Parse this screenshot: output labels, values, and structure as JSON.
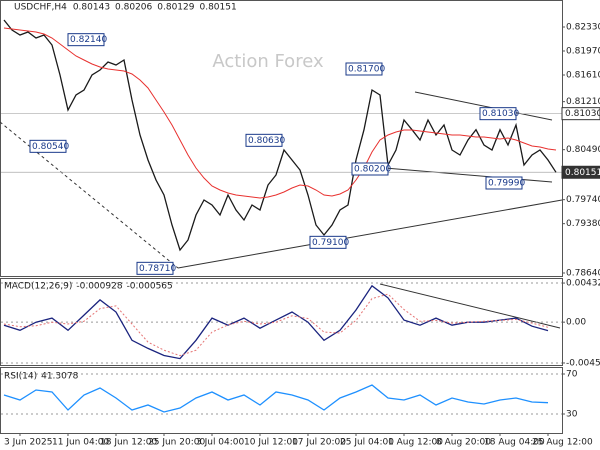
{
  "chart_data": [
    {
      "type": "line",
      "title": "USDCHF,H4",
      "ohlc": [
        0.80143,
        0.80206,
        0.80129,
        0.80151
      ],
      "watermark": "Action Forex",
      "categories": [
        null,
        null,
        "3 Jun 2025",
        null,
        null,
        null,
        null,
        null,
        "11 Jun 04:00",
        null,
        null,
        null,
        null,
        null,
        "18 Jun 12:00",
        null,
        null,
        null,
        null,
        null,
        "25 Jun 20:00",
        null,
        null,
        null,
        null,
        null,
        "3 Jul 04:00",
        null,
        null,
        null,
        null,
        null,
        "10 Jul 12:00",
        null,
        null,
        null,
        null,
        null,
        "17 Jul 20:00",
        null,
        null,
        null,
        null,
        null,
        "25 Jul 04:00",
        null,
        null,
        null,
        null,
        null,
        "1 Aug 12:00",
        null,
        null,
        null,
        null,
        null,
        "8 Aug 20:00",
        null,
        null,
        null,
        null,
        null,
        "18 Aug 04:00",
        null,
        null,
        null,
        null,
        null,
        "25 Aug 12:00",
        null
      ],
      "series": [
        {
          "color": "#1a1a1a",
          "values": [
            0.82435,
            0.82285,
            0.8221,
            0.82255,
            0.82165,
            0.8221,
            0.8206,
            0.8161,
            0.81085,
            0.8131,
            0.81385,
            0.8161,
            0.81685,
            0.81805,
            0.8176,
            0.81835,
            0.81235,
            0.8071,
            0.80335,
            0.80035,
            0.7981,
            0.7936,
            0.78985,
            0.79135,
            0.7951,
            0.79735,
            0.7966,
            0.7951,
            0.7981,
            0.79585,
            0.79435,
            0.7966,
            0.79585,
            0.7996,
            0.8011,
            0.80485,
            0.80335,
            0.80185,
            0.7981,
            0.7936,
            0.7921,
            0.7936,
            0.79585,
            0.7966,
            0.80335,
            0.8079,
            0.81385,
            0.8131,
            0.8026,
            0.80485,
            0.80935,
            0.8079,
            0.80635,
            0.80935,
            0.8071,
            0.8086,
            0.80485,
            0.8041,
            0.80635,
            0.8079,
            0.8056,
            0.80485,
            0.8079,
            0.8056,
            0.8086,
            0.8026,
            0.8041,
            0.80485,
            0.80335,
            0.80151
          ]
        },
        {
          "color": "#e8312f",
          "values": [
            0.82315,
            0.823,
            0.82285,
            0.8227,
            0.82255,
            0.82225,
            0.82165,
            0.82075,
            0.81985,
            0.81895,
            0.81835,
            0.81775,
            0.8173,
            0.817,
            0.81685,
            0.8167,
            0.81625,
            0.81535,
            0.81415,
            0.81235,
            0.81055,
            0.8086,
            0.80635,
            0.8041,
            0.80215,
            0.80065,
            0.79945,
            0.79885,
            0.7984,
            0.7981,
            0.79795,
            0.7978,
            0.79765,
            0.7978,
            0.7981,
            0.79855,
            0.79915,
            0.7996,
            0.79945,
            0.79885,
            0.7981,
            0.79795,
            0.79825,
            0.79885,
            0.80035,
            0.80215,
            0.80455,
            0.80635,
            0.8071,
            0.80755,
            0.80785,
            0.80785,
            0.8077,
            0.80755,
            0.8074,
            0.80725,
            0.8071,
            0.8071,
            0.80695,
            0.8068,
            0.8068,
            0.80665,
            0.8065,
            0.80665,
            0.80635,
            0.8059,
            0.80545,
            0.8053,
            0.805,
            0.80485
          ]
        }
      ],
      "ylim": [
        0.7861,
        0.82735
      ],
      "yticks": [
        {
          "value": 0.8233,
          "label": "0.82330"
        },
        {
          "value": 0.8197,
          "label": "0.81970"
        },
        {
          "value": 0.8161,
          "label": "0.81610"
        },
        {
          "value": 0.8121,
          "label": "0.81210"
        },
        {
          "value": 0.8049,
          "label": "0.80490"
        },
        {
          "value": 0.7974,
          "label": "0.79740"
        },
        {
          "value": 0.7938,
          "label": "0.79380"
        },
        {
          "value": 0.7864,
          "label": "0.78640"
        }
      ],
      "price_labels": [
        {
          "value": 0.8103,
          "label": "0.81030"
        },
        {
          "value": 0.80151,
          "label": "0.80151"
        }
      ],
      "annotations": [
        {
          "value": 0.8214,
          "label": "0.82140"
        },
        {
          "value": 0.8054,
          "label": "0.80540"
        },
        {
          "value": 0.7871,
          "label": "0.78710"
        },
        {
          "value": 0.8063,
          "label": "0.80630"
        },
        {
          "value": 0.791,
          "label": "0.79100"
        },
        {
          "value": 0.817,
          "label": "0.81700"
        },
        {
          "value": 0.802,
          "label": "0.80200"
        },
        {
          "value": 0.8103,
          "label": "0.81030"
        },
        {
          "value": 0.7999,
          "label": "0.79990"
        }
      ]
    },
    {
      "type": "line",
      "title": "MACD(12,26,9)",
      "readout": [
        -0.000928,
        -0.000565
      ],
      "series": [
        {
          "color": "#1a237e",
          "values": [
            -0.000335,
            -0.000894,
            0,
            0.000447,
            -0.000894,
            0.000783,
            0.00246,
            0.00112,
            -0.00201,
            -0.0029,
            -0.00369,
            -0.00403,
            -0.00201,
            0.000447,
            -0.000335,
            0.000447,
            -0.000671,
            0.000224,
            0.00112,
            0,
            -0.00201,
            -0.000894,
            0.00134,
            0.00402,
            0.00268,
            0.000224,
            -0.000335,
            0.000447,
            -0.000335,
            0,
            0,
            0.000224,
            0.000447,
            -0.000447,
            -0.000928
          ]
        },
        {
          "color": "#e57373",
          "values": [
            -0.0002,
            -0.0005,
            -0.0004,
            0,
            -0.0002,
            0.0001,
            0.0015,
            0.0018,
            -0.0002,
            -0.0022,
            -0.0031,
            -0.0037,
            -0.0031,
            -0.0011,
            -0.0003,
            0.0001,
            -0.0002,
            0,
            0.0007,
            0.0004,
            -0.0011,
            -0.0012,
            0.0002,
            0.0026,
            0.0031,
            0.0014,
            0.0001,
            0.0002,
            -0.0001,
            0,
            0.0001,
            0.0002,
            0.0003,
            -0.0001,
            -0.000565
          ]
        }
      ],
      "ylim": [
        -0.004735,
        0.004882
      ],
      "yticks": [
        0.004323,
        {
          "value": 0,
          "label": "0.00"
        },
        -0.004511
      ]
    },
    {
      "type": "line",
      "title": "RSI(14)",
      "readout": [
        41.3078
      ],
      "series": [
        {
          "color": "#1e90ff",
          "values": [
            49,
            44,
            54,
            52,
            34,
            49,
            56,
            46,
            34,
            39,
            32,
            36,
            46,
            52,
            44,
            49,
            39,
            52,
            49,
            44,
            34,
            46,
            52,
            59,
            46,
            44,
            49,
            39,
            46,
            42,
            40,
            44,
            46,
            42,
            41.3078
          ]
        }
      ],
      "ylim": [
        12,
        76
      ],
      "yticks": [
        70,
        30
      ]
    }
  ]
}
